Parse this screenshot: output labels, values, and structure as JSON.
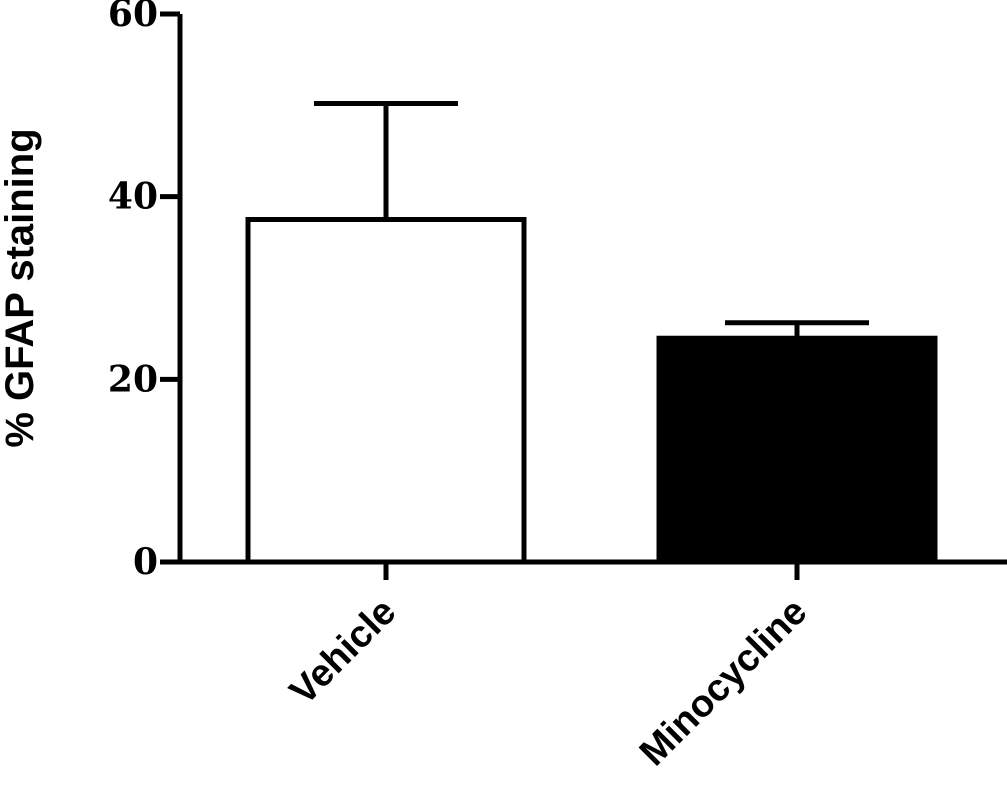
{
  "chart_data": {
    "type": "bar",
    "title": "",
    "xlabel": "",
    "ylabel": "% GFAP staining",
    "ylim": [
      0,
      60
    ],
    "yticks": [
      0,
      20,
      40,
      60
    ],
    "categories": [
      "Vehicle",
      "Minocycline"
    ],
    "values": [
      37.5,
      24.5
    ],
    "errors": [
      12.7,
      1.7
    ],
    "bar_fill": [
      "#ffffff",
      "#000000"
    ],
    "bar_stroke": "#000000",
    "grid": false,
    "legend": "none"
  }
}
